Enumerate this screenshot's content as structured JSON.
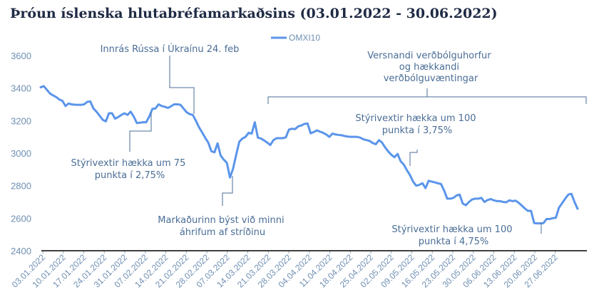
{
  "chart_data": {
    "type": "line",
    "title": "Þróun íslenska hlutabréfamarkaðsins (03.01.2022 - 30.06.2022)",
    "legend": {
      "position": "top-center",
      "label": "OMXI10"
    },
    "ylim": [
      2400,
      3600
    ],
    "yticks": [
      "2400",
      "2600",
      "2800",
      "3000",
      "3200",
      "3400",
      "3600"
    ],
    "grid": false,
    "xlabels": [
      "03.01.2022",
      "10.01.2022",
      "17.01.2022",
      "24.01.2022",
      "31.01.2022",
      "07.02.2022",
      "14.02.2022",
      "21.02.2022",
      "28.02.2022",
      "07.03.2022",
      "14.03.2022",
      "21.03.2022",
      "28.03.2022",
      "04.04.2022",
      "11.04.2022",
      "18.04.2022",
      "25.04.2022",
      "02.05.2022",
      "09.05.2022",
      "16.05.2022",
      "23.05.2022",
      "30.05.2022",
      "06.06.2022",
      "13.06.2022",
      "20.06.2022",
      "27.06.2022"
    ],
    "series": [
      {
        "name": "OMXI10",
        "color": "#5b95ea",
        "values": [
          3405,
          3412,
          3390,
          3367,
          3355,
          3345,
          3330,
          3322,
          3290,
          3305,
          3300,
          3298,
          3297,
          3297,
          3300,
          3315,
          3318,
          3275,
          3255,
          3230,
          3205,
          3195,
          3245,
          3245,
          3212,
          3222,
          3235,
          3245,
          3235,
          3255,
          3225,
          3185,
          3187,
          3190,
          3190,
          3225,
          3272,
          3275,
          3300,
          3290,
          3285,
          3278,
          3288,
          3300,
          3300,
          3298,
          3275,
          3252,
          3240,
          3235,
          3200,
          3160,
          3128,
          3095,
          3065,
          3012,
          3005,
          3060,
          2985,
          2960,
          2940,
          2850,
          2905,
          2990,
          3070,
          3090,
          3100,
          3125,
          3120,
          3190,
          3095,
          3090,
          3078,
          3065,
          3050,
          3080,
          3092,
          3092,
          3092,
          3097,
          3145,
          3150,
          3148,
          3165,
          3170,
          3180,
          3182,
          3122,
          3130,
          3140,
          3132,
          3125,
          3115,
          3100,
          3120,
          3115,
          3112,
          3110,
          3105,
          3102,
          3100,
          3100,
          3100,
          3095,
          3085,
          3080,
          3075,
          3062,
          3055,
          3080,
          3065,
          3035,
          3010,
          2990,
          2975,
          2995,
          2950,
          2930,
          2895,
          2865,
          2825,
          2800,
          2805,
          2815,
          2785,
          2830,
          2825,
          2820,
          2815,
          2810,
          2770,
          2720,
          2720,
          2725,
          2740,
          2745,
          2690,
          2680,
          2700,
          2715,
          2720,
          2720,
          2725,
          2700,
          2712,
          2718,
          2710,
          2705,
          2705,
          2700,
          2698,
          2710,
          2705,
          2708,
          2695,
          2678,
          2660,
          2645,
          2645,
          2570,
          2568,
          2568,
          2570,
          2595,
          2595,
          2600,
          2603,
          2665,
          2692,
          2720,
          2745,
          2750,
          2700,
          2658
        ]
      }
    ],
    "annotations": {
      "invasion": [
        "Innrás Rússa í Úkraínu 24. feb"
      ],
      "inflation": [
        "Versnandi verðbólguhorfur",
        "og hækkandi",
        "verðbólguvæntingar"
      ],
      "hike_100_a": [
        "Stýrivextir hækka um 100",
        "punkta í 3,75%"
      ],
      "hike_75": [
        "Stýrivextir hækka um 75",
        "punkta í 2,75%"
      ],
      "market": [
        "Markaðurinn býst við minni",
        "áhrifum af stríðinu"
      ],
      "hike_100_b": [
        "Stýrivextir hækka um 100",
        "punkta í 4,75%"
      ]
    }
  }
}
